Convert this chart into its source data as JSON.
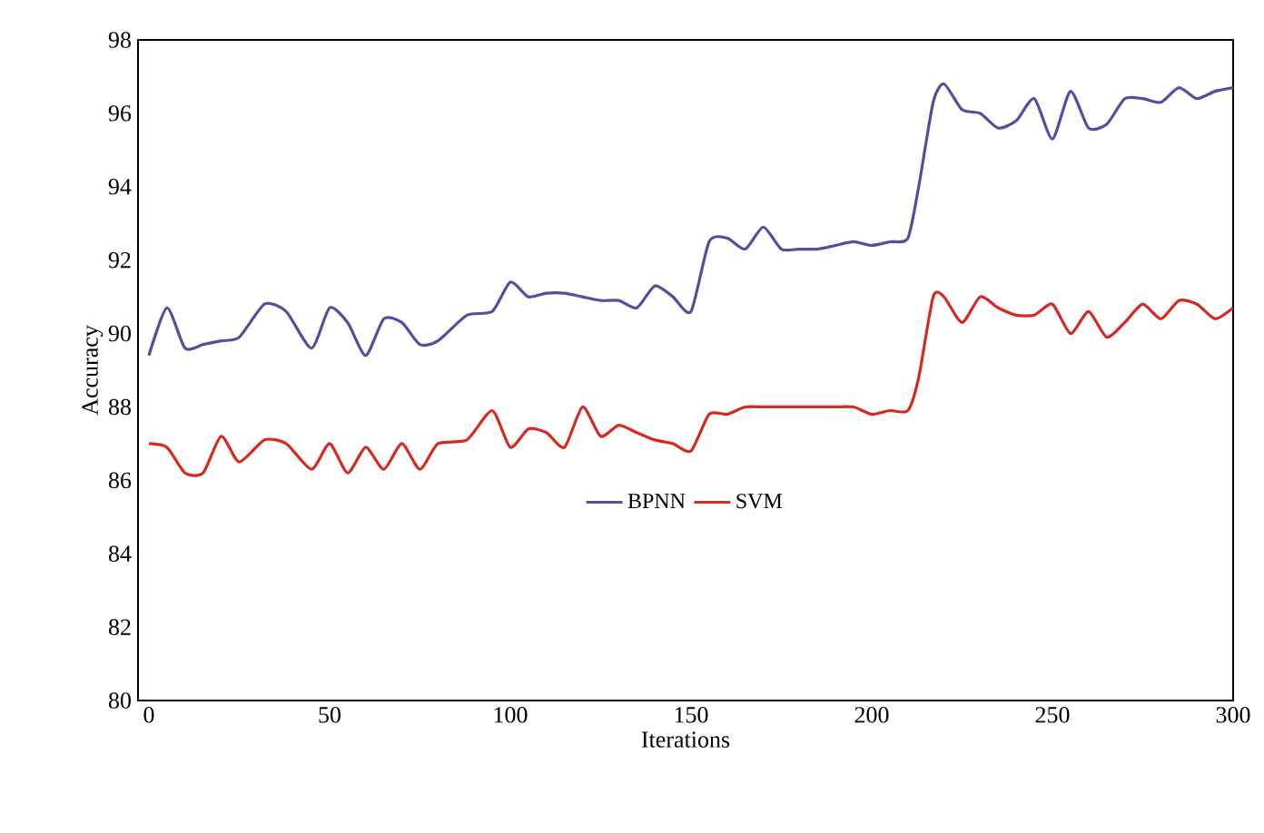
{
  "chart_data": {
    "type": "line",
    "xlabel": "Iterations",
    "ylabel": "Accuracy",
    "xlim": [
      -3,
      300
    ],
    "xticks": [
      0,
      50,
      100,
      150,
      200,
      250,
      300
    ],
    "ylim": [
      80,
      98
    ],
    "yticks": [
      80,
      82,
      84,
      86,
      88,
      90,
      92,
      94,
      96,
      98
    ],
    "legend": "bottom",
    "grid": false,
    "x": [
      0,
      5,
      10,
      15,
      20,
      25,
      32,
      38,
      45,
      50,
      55,
      60,
      65,
      70,
      75,
      80,
      88,
      95,
      100,
      105,
      110,
      115,
      120,
      125,
      130,
      135,
      140,
      145,
      150,
      155,
      160,
      165,
      170,
      175,
      180,
      185,
      190,
      195,
      200,
      205,
      210,
      213,
      217,
      220,
      225,
      230,
      235,
      240,
      245,
      250,
      255,
      260,
      265,
      270,
      275,
      280,
      285,
      290,
      295,
      300
    ],
    "series": [
      {
        "name": "BPNN",
        "color": "#5b4a9e",
        "values": [
          89.4,
          90.7,
          89.6,
          89.7,
          89.8,
          89.9,
          90.8,
          90.6,
          89.6,
          90.7,
          90.3,
          89.4,
          90.4,
          90.3,
          89.7,
          89.8,
          90.5,
          90.6,
          91.4,
          91.0,
          91.1,
          91.1,
          91.0,
          90.9,
          90.9,
          90.7,
          91.3,
          91.0,
          90.6,
          92.5,
          92.6,
          92.3,
          92.9,
          92.3,
          92.3,
          92.3,
          92.4,
          92.5,
          92.4,
          92.5,
          92.6,
          94.0,
          96.3,
          96.8,
          96.1,
          96.0,
          95.6,
          95.8,
          96.4,
          95.3,
          96.6,
          95.6,
          95.7,
          96.4,
          96.4,
          96.3,
          96.7,
          96.4,
          96.6,
          96.7
        ]
      },
      {
        "name": "SVM",
        "color": "#d42a20",
        "values": [
          87.0,
          86.9,
          86.2,
          86.2,
          87.2,
          86.5,
          87.1,
          87.0,
          86.3,
          87.0,
          86.2,
          86.9,
          86.3,
          87.0,
          86.3,
          87.0,
          87.1,
          87.9,
          86.9,
          87.4,
          87.3,
          86.9,
          88.0,
          87.2,
          87.5,
          87.3,
          87.1,
          87.0,
          86.8,
          87.8,
          87.8,
          88.0,
          88.0,
          88.0,
          88.0,
          88.0,
          88.0,
          88.0,
          87.8,
          87.9,
          87.9,
          88.8,
          91.0,
          91.0,
          90.3,
          91.0,
          90.7,
          90.5,
          90.5,
          90.8,
          90.0,
          90.6,
          89.9,
          90.3,
          90.8,
          90.4,
          90.9,
          90.8,
          90.4,
          90.7
        ]
      }
    ]
  }
}
